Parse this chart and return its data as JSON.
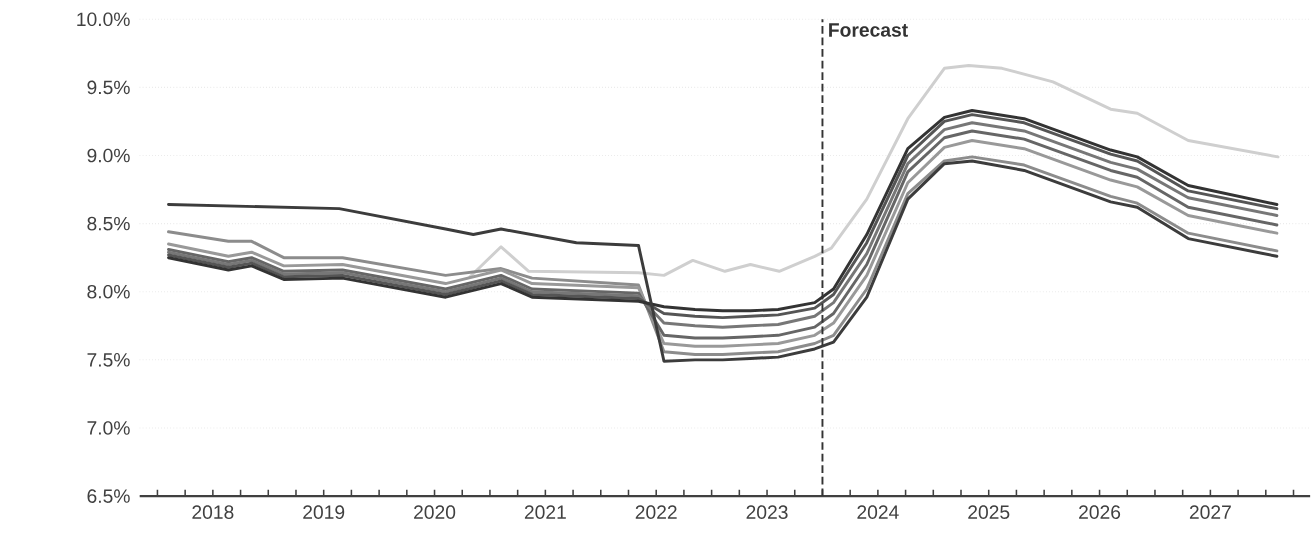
{
  "chart_data": {
    "type": "line",
    "xlim": [
      2017.84,
      2028.4
    ],
    "ylim": [
      6.5,
      10.0
    ],
    "yticks": [
      {
        "value": 6.5,
        "label": "6.5%"
      },
      {
        "value": 7.0,
        "label": "7.0%"
      },
      {
        "value": 7.5,
        "label": "7.5%"
      },
      {
        "value": 8.0,
        "label": "8.0%"
      },
      {
        "value": 8.5,
        "label": "8.5%"
      },
      {
        "value": 9.0,
        "label": "9.0%"
      },
      {
        "value": 9.5,
        "label": "9.5%"
      },
      {
        "value": 10.0,
        "label": "10.0%"
      }
    ],
    "xticks": [
      {
        "value": 2018,
        "label": null
      },
      {
        "value": 2018.25,
        "label": null
      },
      {
        "value": 2018.5,
        "label": "2018"
      },
      {
        "value": 2018.75,
        "label": null
      },
      {
        "value": 2019,
        "label": null
      },
      {
        "value": 2019.25,
        "label": null
      },
      {
        "value": 2019.5,
        "label": "2019"
      },
      {
        "value": 2019.75,
        "label": null
      },
      {
        "value": 2020,
        "label": null
      },
      {
        "value": 2020.25,
        "label": null
      },
      {
        "value": 2020.5,
        "label": "2020"
      },
      {
        "value": 2020.75,
        "label": null
      },
      {
        "value": 2021,
        "label": null
      },
      {
        "value": 2021.25,
        "label": null
      },
      {
        "value": 2021.5,
        "label": "2021"
      },
      {
        "value": 2021.75,
        "label": null
      },
      {
        "value": 2022,
        "label": null
      },
      {
        "value": 2022.25,
        "label": null
      },
      {
        "value": 2022.5,
        "label": "2022"
      },
      {
        "value": 2022.75,
        "label": null
      },
      {
        "value": 2023,
        "label": null
      },
      {
        "value": 2023.25,
        "label": null
      },
      {
        "value": 2023.5,
        "label": "2023"
      },
      {
        "value": 2023.75,
        "label": null
      },
      {
        "value": 2024,
        "label": null
      },
      {
        "value": 2024.25,
        "label": null
      },
      {
        "value": 2024.5,
        "label": "2024"
      },
      {
        "value": 2024.75,
        "label": null
      },
      {
        "value": 2025,
        "label": null
      },
      {
        "value": 2025.25,
        "label": null
      },
      {
        "value": 2025.5,
        "label": "2025"
      },
      {
        "value": 2025.75,
        "label": null
      },
      {
        "value": 2026,
        "label": null
      },
      {
        "value": 2026.25,
        "label": null
      },
      {
        "value": 2026.5,
        "label": "2026"
      },
      {
        "value": 2026.75,
        "label": null
      },
      {
        "value": 2027,
        "label": null
      },
      {
        "value": 2027.25,
        "label": null
      },
      {
        "value": 2027.5,
        "label": "2027"
      },
      {
        "value": 2027.75,
        "label": null
      },
      {
        "value": 2028,
        "label": null
      },
      {
        "value": 2028.25,
        "label": null
      }
    ],
    "grid": "y",
    "ref_lines": [
      {
        "axis": "x",
        "value": 2024,
        "label": "Forecast",
        "line_style": "dashed",
        "color": "#333333"
      }
    ],
    "series": [
      {
        "color": "#cfcfcf",
        "x": [
          2020.82,
          2021.1,
          2021.35,
          2022.34,
          2022.57,
          2022.83,
          2023.12,
          2023.35,
          2023.61,
          2023.93,
          2024.08,
          2024.4,
          2024.77,
          2025.1,
          2025.32,
          2025.62,
          2026.08,
          2026.6,
          2026.84,
          2027.3,
          2028.11
        ],
        "values": [
          8.11,
          8.33,
          8.15,
          8.14,
          8.12,
          8.23,
          8.15,
          8.2,
          8.15,
          8.26,
          8.32,
          8.68,
          9.27,
          9.64,
          9.66,
          9.64,
          9.54,
          9.34,
          9.31,
          9.11,
          8.99
        ]
      },
      {
        "color": "#8c8c8c",
        "x": [
          2018.1,
          2018.64,
          2018.85,
          2019.14,
          2019.67,
          2020.6,
          2021.1,
          2021.38,
          2022.34,
          2022.57,
          2022.85,
          2023.1,
          2023.35,
          2023.6,
          2023.93,
          2024.1,
          2024.4,
          2024.77,
          2025.1,
          2025.35,
          2025.82,
          2026.6,
          2026.84,
          2027.3,
          2028.1
        ],
        "values": [
          8.44,
          8.37,
          8.37,
          8.25,
          8.25,
          8.12,
          8.17,
          8.1,
          8.05,
          7.56,
          7.54,
          7.54,
          7.55,
          7.56,
          7.62,
          7.68,
          8.02,
          8.72,
          8.96,
          8.99,
          8.93,
          8.7,
          8.65,
          8.43,
          8.3
        ]
      },
      {
        "color": "#999999",
        "x": [
          2018.1,
          2018.64,
          2018.85,
          2019.14,
          2019.67,
          2020.6,
          2021.1,
          2021.38,
          2022.34,
          2022.57,
          2022.85,
          2023.1,
          2023.35,
          2023.6,
          2023.93,
          2024.1,
          2024.4,
          2024.77,
          2025.1,
          2025.35,
          2025.82,
          2026.6,
          2026.84,
          2027.3,
          2028.1
        ],
        "values": [
          8.35,
          8.26,
          8.29,
          8.19,
          8.2,
          8.06,
          8.16,
          8.06,
          8.03,
          7.62,
          7.6,
          7.6,
          7.61,
          7.62,
          7.68,
          7.77,
          8.12,
          8.8,
          9.06,
          9.11,
          9.05,
          8.82,
          8.77,
          8.56,
          8.43
        ]
      },
      {
        "color": "#666666",
        "x": [
          2018.1,
          2018.64,
          2018.85,
          2019.14,
          2019.67,
          2020.6,
          2021.1,
          2021.38,
          2022.34,
          2022.57,
          2022.85,
          2023.1,
          2023.35,
          2023.6,
          2023.93,
          2024.1,
          2024.4,
          2024.77,
          2025.1,
          2025.35,
          2025.82,
          2026.6,
          2026.84,
          2027.3,
          2028.1
        ],
        "values": [
          8.31,
          8.22,
          8.25,
          8.15,
          8.16,
          8.02,
          8.12,
          8.02,
          7.99,
          7.68,
          7.66,
          7.66,
          7.67,
          7.68,
          7.74,
          7.84,
          8.2,
          8.88,
          9.13,
          9.18,
          9.12,
          8.89,
          8.84,
          8.62,
          8.49
        ]
      },
      {
        "color": "#777777",
        "x": [
          2018.1,
          2018.64,
          2018.85,
          2019.14,
          2019.67,
          2020.6,
          2021.1,
          2021.38,
          2022.34,
          2022.57,
          2022.85,
          2023.1,
          2023.35,
          2023.6,
          2023.93,
          2024.1,
          2024.4,
          2024.77,
          2025.1,
          2025.35,
          2025.82,
          2026.6,
          2026.84,
          2027.3,
          2028.1
        ],
        "values": [
          8.29,
          8.2,
          8.23,
          8.13,
          8.14,
          8.0,
          8.1,
          8.0,
          7.97,
          7.77,
          7.75,
          7.74,
          7.75,
          7.76,
          7.82,
          7.92,
          8.28,
          8.94,
          9.19,
          9.24,
          9.18,
          8.95,
          8.9,
          8.69,
          8.56
        ]
      },
      {
        "color": "#555555",
        "x": [
          2018.1,
          2018.64,
          2018.85,
          2019.14,
          2019.67,
          2020.6,
          2021.1,
          2021.38,
          2022.34,
          2022.57,
          2022.85,
          2023.1,
          2023.35,
          2023.6,
          2023.93,
          2024.1,
          2024.4,
          2024.77,
          2025.1,
          2025.35,
          2025.82,
          2026.6,
          2026.84,
          2027.3,
          2028.1
        ],
        "values": [
          8.27,
          8.18,
          8.21,
          8.11,
          8.12,
          7.98,
          8.08,
          7.98,
          7.95,
          7.84,
          7.82,
          7.81,
          7.82,
          7.83,
          7.88,
          7.98,
          8.36,
          9.0,
          9.25,
          9.3,
          9.24,
          9.01,
          8.96,
          8.74,
          8.61
        ]
      },
      {
        "color": "#333333",
        "x": [
          2018.1,
          2018.64,
          2018.85,
          2019.14,
          2019.67,
          2020.6,
          2021.1,
          2021.38,
          2022.34,
          2022.57,
          2022.85,
          2023.1,
          2023.35,
          2023.6,
          2023.93,
          2024.1,
          2024.4,
          2024.77,
          2025.1,
          2025.35,
          2025.82,
          2026.6,
          2026.84,
          2027.3,
          2028.1
        ],
        "values": [
          8.25,
          8.16,
          8.19,
          8.09,
          8.1,
          7.96,
          8.06,
          7.96,
          7.93,
          7.89,
          7.87,
          7.86,
          7.86,
          7.87,
          7.92,
          8.02,
          8.42,
          9.05,
          9.28,
          9.33,
          9.27,
          9.04,
          8.99,
          8.78,
          8.64
        ]
      },
      {
        "color": "#3c3c3c",
        "x": [
          2018.1,
          2019.64,
          2020.6,
          2020.85,
          2021.1,
          2021.78,
          2022.34,
          2022.57,
          2022.85,
          2023.1,
          2023.35,
          2023.6,
          2023.93,
          2024.1,
          2024.4,
          2024.77,
          2025.1,
          2025.35,
          2025.82,
          2026.6,
          2026.84,
          2027.3,
          2028.1
        ],
        "values": [
          8.64,
          8.61,
          8.46,
          8.42,
          8.46,
          8.36,
          8.34,
          7.49,
          7.5,
          7.5,
          7.51,
          7.52,
          7.58,
          7.63,
          7.96,
          8.68,
          8.94,
          8.96,
          8.89,
          8.66,
          8.62,
          8.39,
          8.26
        ]
      }
    ]
  }
}
